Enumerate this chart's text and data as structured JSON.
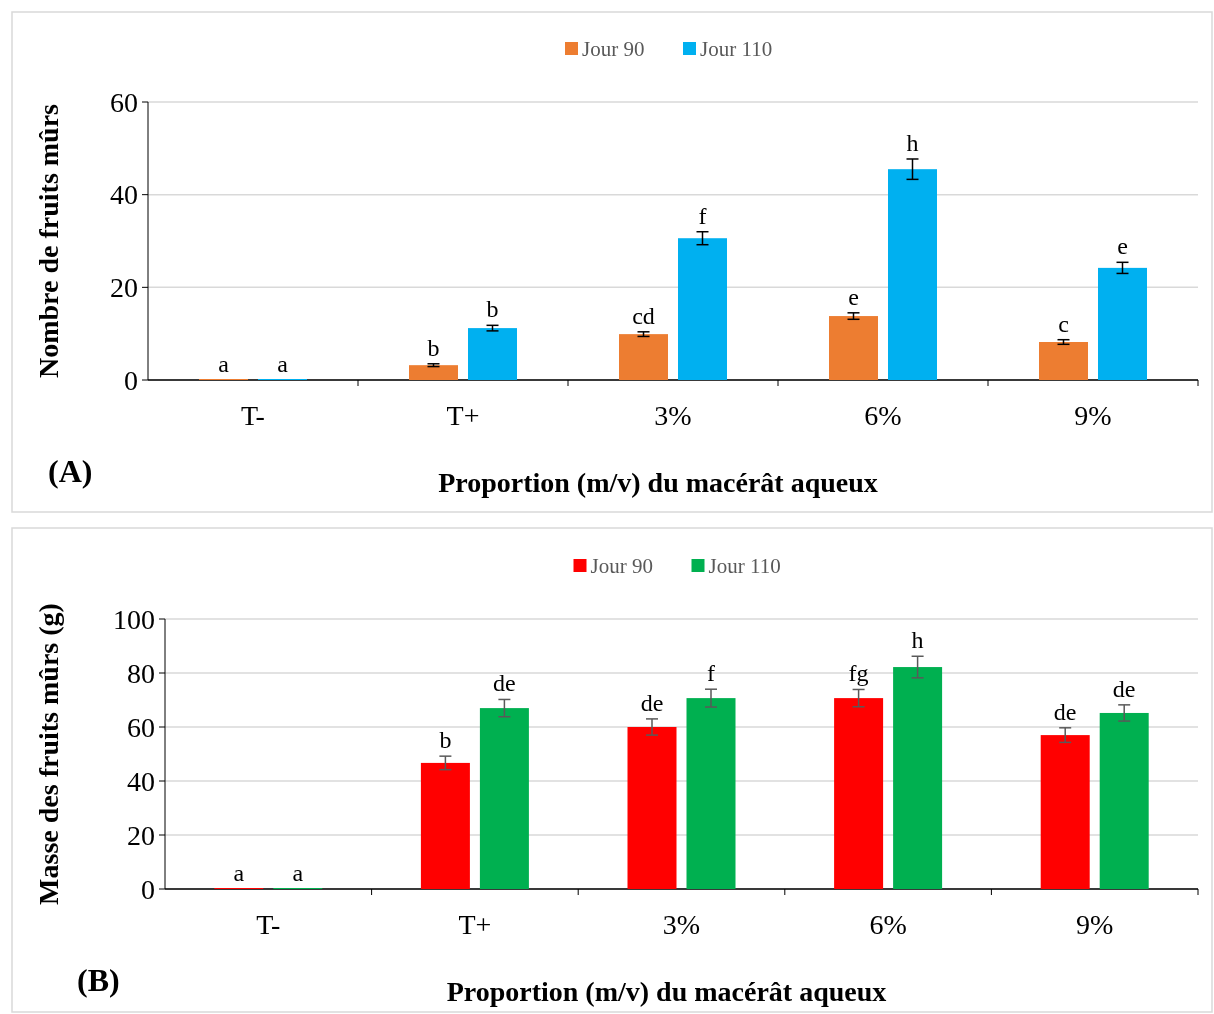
{
  "chart_data": [
    {
      "type": "bar",
      "xlabel": "Proportion (m/v) du macérât aqueux",
      "ylabel": "Nombre de fruits mûrs",
      "categories": [
        "T-",
        "T+",
        "3%",
        "6%",
        "9%"
      ],
      "series": [
        {
          "name": "Jour 90",
          "color": "#ed7d31",
          "values": [
            0,
            3.2,
            9.9,
            13.8,
            8.2
          ],
          "errors": [
            null,
            0.3,
            0.5,
            0.7,
            0.5
          ],
          "value_labels": [
            "a",
            "b",
            "cd",
            "e",
            "c"
          ]
        },
        {
          "name": "Jour 110",
          "color": "#00b0f0",
          "values": [
            0,
            11.2,
            30.6,
            45.5,
            24.2
          ],
          "errors": [
            null,
            0.6,
            1.4,
            2.2,
            1.2
          ],
          "value_labels": [
            "a",
            "b",
            "f",
            "h",
            "e"
          ]
        }
      ],
      "ylim": [
        0,
        60
      ],
      "yticks": [
        0,
        20,
        40,
        60
      ],
      "grid": "y",
      "legend": "top",
      "annotations": [
        "(A)"
      ]
    },
    {
      "type": "bar",
      "xlabel": "Proportion (m/v) du macérât aqueux",
      "ylabel": "Masse des fruits mûrs (g)",
      "categories": [
        "T-",
        "T+",
        "3%",
        "6%",
        "9%"
      ],
      "series": [
        {
          "name": "Jour 90",
          "color": "#ff0000",
          "values": [
            0,
            46.7,
            60,
            70.7,
            57
          ],
          "errors": [
            null,
            2.5,
            3,
            3.2,
            2.7
          ],
          "value_labels": [
            "a",
            "b",
            "de",
            "fg",
            "de"
          ]
        },
        {
          "name": "Jour 110",
          "color": "#00b050",
          "values": [
            0,
            67,
            70.7,
            82.2,
            65.2
          ],
          "errors": [
            null,
            3.2,
            3.3,
            4,
            3
          ],
          "value_labels": [
            "a",
            "de",
            "f",
            "h",
            "de"
          ]
        }
      ],
      "ylim": [
        0,
        100
      ],
      "yticks": [
        0,
        20,
        40,
        60,
        80,
        100
      ],
      "grid": "y",
      "legend": "top",
      "annotations": [
        "(B)"
      ]
    }
  ]
}
